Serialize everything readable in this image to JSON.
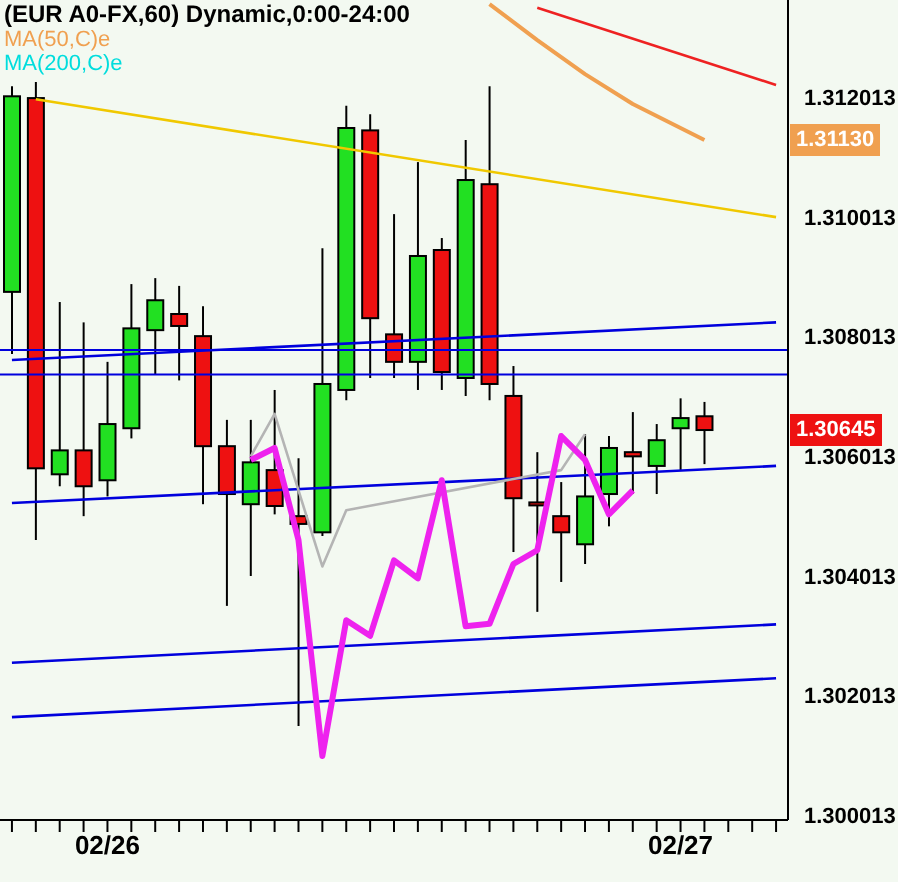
{
  "chart_data": {
    "type": "candlestick",
    "title": "(EUR A0-FX,60) Dynamic,0:00-24:00",
    "categories": [
      null,
      null,
      null,
      null,
      "02/26",
      null,
      null,
      null,
      null,
      null,
      null,
      null,
      null,
      null,
      null,
      null,
      null,
      null,
      null,
      null,
      null,
      null,
      null,
      null,
      null,
      null,
      null,
      null,
      "02/27",
      null,
      null,
      null,
      null
    ],
    "ohlc": [
      [
        1.30876,
        1.3122,
        1.30772,
        1.31203
      ],
      [
        1.312,
        1.31227,
        1.30461,
        1.30581
      ],
      [
        1.30571,
        1.30859,
        1.30551,
        1.30611
      ],
      [
        1.30611,
        1.30825,
        1.30501,
        1.30551
      ],
      [
        1.30561,
        1.30759,
        1.30534,
        1.30655
      ],
      [
        1.30648,
        1.30889,
        1.30631,
        1.30815
      ],
      [
        1.30812,
        1.30899,
        1.30738,
        1.30862
      ],
      [
        1.30839,
        1.30886,
        1.30728,
        1.30819
      ],
      [
        1.30802,
        1.30852,
        1.30521,
        1.30618
      ],
      [
        1.30618,
        1.30662,
        1.30351,
        1.30538
      ],
      [
        1.30521,
        1.30662,
        1.30401,
        1.30591
      ],
      [
        1.30578,
        1.30712,
        1.30504,
        1.30518
      ],
      [
        1.30501,
        1.30598,
        1.3015,
        1.30488
      ],
      [
        1.30474,
        1.30949,
        1.30468,
        1.30722
      ],
      [
        1.30712,
        1.31187,
        1.30695,
        1.3115
      ],
      [
        1.31146,
        1.31173,
        1.30732,
        1.30832
      ],
      [
        1.30805,
        1.31006,
        1.30732,
        1.30759
      ],
      [
        1.30759,
        1.31093,
        1.30712,
        1.30936
      ],
      [
        1.30946,
        1.30966,
        1.30712,
        1.30742
      ],
      [
        1.30732,
        1.3113,
        1.30702,
        1.31063
      ],
      [
        1.31056,
        1.3122,
        1.30695,
        1.30722
      ],
      [
        1.30702,
        1.30752,
        1.30441,
        1.30531
      ],
      [
        1.30524,
        1.30608,
        1.30341,
        1.30521
      ],
      [
        1.30501,
        1.30558,
        1.30391,
        1.30474
      ],
      [
        1.30454,
        1.30638,
        1.30421,
        1.30534
      ],
      [
        1.30538,
        1.30635,
        1.30484,
        1.30615
      ],
      [
        1.30608,
        1.30675,
        1.30538,
        1.30601
      ],
      [
        1.30585,
        1.30655,
        1.30538,
        1.30628
      ],
      [
        1.30648,
        1.30698,
        1.30578,
        1.30665
      ],
      [
        1.30668,
        1.30692,
        1.30588,
        1.30645
      ],
      null,
      null,
      null
    ],
    "colors": [
      "#22e022",
      "#ee1111",
      "#22e022",
      "#ee1111",
      "#22e022",
      "#22e022",
      "#22e022",
      "#ee1111",
      "#ee1111",
      "#ee1111",
      "#22e022",
      "#ee1111",
      "#ee1111",
      "#22e022",
      "#22e022",
      "#ee1111",
      "#ee1111",
      "#22e022",
      "#ee1111",
      "#22e022",
      "#ee1111",
      "#ee1111",
      "#ee1111",
      "#ee1111",
      "#22e022",
      "#22e022",
      "#ee1111",
      "#22e022",
      "#22e022",
      "#ee1111",
      null,
      null,
      null
    ],
    "series": [
      {
        "type": "line",
        "name": "MA(50,C)e",
        "color": "#f0a050",
        "values": [
          null,
          null,
          null,
          null,
          null,
          null,
          null,
          null,
          null,
          null,
          null,
          null,
          null,
          null,
          null,
          null,
          null,
          null,
          null,
          null,
          1.31357,
          null,
          1.31297,
          null,
          1.3124,
          null,
          1.3119,
          null,
          null,
          1.3113,
          null,
          null,
          null
        ]
      },
      {
        "type": "line",
        "name": "MA(200,C)e",
        "color": "#00dddd",
        "values": [
          null,
          null,
          null,
          null,
          null,
          null,
          null,
          null,
          null,
          null,
          null,
          null,
          null,
          null,
          null,
          null,
          null,
          null,
          null,
          null,
          null,
          null,
          null,
          null,
          null,
          null,
          null,
          null,
          null,
          null,
          null,
          null,
          null
        ]
      },
      {
        "type": "line",
        "color": "#f0c800",
        "values": [
          null,
          1.31198,
          null,
          null,
          null,
          null,
          null,
          null,
          null,
          null,
          null,
          null,
          null,
          null,
          null,
          null,
          null,
          null,
          null,
          null,
          null,
          null,
          null,
          null,
          null,
          null,
          null,
          null,
          null,
          null,
          null,
          null,
          1.31001
        ]
      },
      {
        "type": "line",
        "color": "#ee2222",
        "values": [
          null,
          null,
          null,
          null,
          null,
          null,
          null,
          null,
          null,
          null,
          null,
          null,
          null,
          null,
          null,
          null,
          null,
          null,
          null,
          null,
          null,
          null,
          1.31351,
          null,
          null,
          null,
          null,
          null,
          null,
          null,
          null,
          null,
          1.31222
        ]
      },
      {
        "type": "line",
        "color": "#0000dd",
        "values": [
          1.30762,
          null,
          null,
          null,
          null,
          null,
          null,
          null,
          null,
          null,
          null,
          null,
          null,
          null,
          null,
          null,
          null,
          null,
          null,
          null,
          null,
          null,
          null,
          null,
          null,
          null,
          null,
          null,
          null,
          null,
          null,
          null,
          1.30825
        ]
      },
      {
        "type": "line",
        "color": "#0000dd",
        "values": [
          1.30523,
          null,
          null,
          null,
          null,
          null,
          null,
          null,
          null,
          null,
          null,
          null,
          null,
          null,
          null,
          null,
          null,
          null,
          null,
          null,
          null,
          null,
          null,
          null,
          null,
          null,
          null,
          null,
          null,
          null,
          null,
          null,
          1.30585
        ]
      },
      {
        "type": "line",
        "color": "#0000dd",
        "values": [
          1.30256,
          null,
          null,
          null,
          null,
          null,
          null,
          null,
          null,
          null,
          null,
          null,
          null,
          null,
          null,
          null,
          null,
          null,
          null,
          null,
          null,
          null,
          null,
          null,
          null,
          null,
          null,
          null,
          null,
          null,
          null,
          null,
          1.3032
        ]
      },
      {
        "type": "line",
        "color": "#0000dd",
        "values": [
          1.30165,
          null,
          null,
          null,
          null,
          null,
          null,
          null,
          null,
          null,
          null,
          null,
          null,
          null,
          null,
          null,
          null,
          null,
          null,
          null,
          null,
          null,
          null,
          null,
          null,
          null,
          null,
          null,
          null,
          null,
          null,
          null,
          1.3023
        ]
      },
      {
        "type": "line",
        "color": "#b4b4b4",
        "values": [
          null,
          null,
          null,
          null,
          null,
          null,
          null,
          null,
          null,
          null,
          1.30601,
          1.30672,
          1.30544,
          1.30417,
          1.30511,
          null,
          null,
          null,
          null,
          null,
          null,
          null,
          null,
          1.30578,
          1.30638,
          null,
          null,
          null,
          null,
          null,
          null,
          null,
          null
        ]
      },
      {
        "type": "line",
        "color": "#ee22ee",
        "values": [
          null,
          null,
          null,
          null,
          null,
          null,
          null,
          null,
          null,
          null,
          1.30595,
          1.30615,
          1.30461,
          1.301,
          1.30327,
          1.30301,
          1.30427,
          1.30397,
          1.30561,
          1.30317,
          1.30321,
          1.30421,
          1.30444,
          1.30635,
          1.30595,
          1.30504,
          1.30544,
          null,
          null,
          null,
          null,
          null,
          null
        ]
      }
    ],
    "ref_lines": [
      {
        "axis": "y",
        "value": 1.30779,
        "color": "#0000dd"
      },
      {
        "axis": "y",
        "value": 1.30738,
        "color": "#0000dd"
      }
    ],
    "annotations": [
      "1.31130",
      "1.30645"
    ],
    "ylim": [
      1.29993,
      1.31364
    ],
    "yticks": [
      1.300013,
      1.302013,
      1.304013,
      1.306013,
      1.308013,
      1.310013,
      1.312013
    ],
    "legend": "top left",
    "grid": false
  }
}
